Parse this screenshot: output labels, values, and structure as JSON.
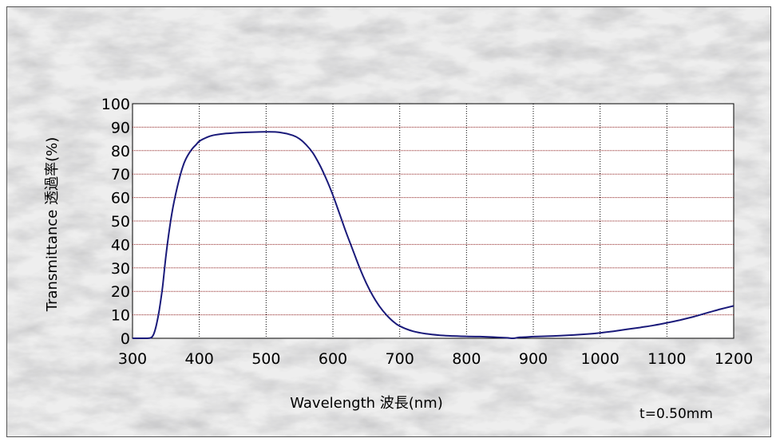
{
  "chart_data": {
    "type": "line",
    "title": "",
    "xlabel": "Wavelength 波長(nm)",
    "ylabel": "Transmittance 透過率(%)",
    "annotation": "t=0.50mm",
    "xlim": [
      300,
      1200
    ],
    "ylim": [
      0,
      100
    ],
    "x_ticks": [
      "300",
      "400",
      "500",
      "600",
      "700",
      "800",
      "900",
      "1000",
      "1100",
      "1200"
    ],
    "y_ticks": [
      "0",
      "10",
      "20",
      "30",
      "40",
      "50",
      "60",
      "70",
      "80",
      "90",
      "100"
    ],
    "grid": true,
    "legend": "none",
    "colors": {
      "line": "#1a1a7a",
      "vertical_grid": "#000000",
      "horizontal_grid": "#8b1a1a",
      "plot_background": "#ffffff"
    },
    "series": [
      {
        "x": [
          300,
          320,
          328,
          332,
          336,
          340,
          345,
          350,
          355,
          360,
          365,
          370,
          375,
          380,
          385,
          390,
          395,
          400,
          410,
          420,
          440,
          460,
          480,
          500,
          520,
          540,
          550,
          560,
          570,
          580,
          590,
          600,
          610,
          620,
          630,
          640,
          650,
          660,
          670,
          680,
          690,
          700,
          720,
          740,
          760,
          780,
          800,
          820,
          840,
          860,
          870,
          880,
          900,
          920,
          940,
          960,
          980,
          1000,
          1020,
          1040,
          1060,
          1080,
          1100,
          1120,
          1140,
          1160,
          1180,
          1200
        ],
        "values": [
          0,
          0,
          0.3,
          2,
          6,
          12,
          22,
          35,
          46,
          55,
          62,
          68,
          73,
          76.5,
          79,
          81,
          82.5,
          84,
          85.5,
          86.5,
          87.3,
          87.7,
          87.9,
          88,
          87.8,
          86.5,
          85,
          82.5,
          79,
          74,
          68,
          61,
          53,
          45,
          37.5,
          30,
          23.5,
          18,
          13.5,
          10,
          7.2,
          5.2,
          3,
          1.9,
          1.3,
          1,
          0.8,
          0.7,
          0.5,
          0.2,
          0,
          0.4,
          0.7,
          0.9,
          1.1,
          1.4,
          1.8,
          2.3,
          3,
          3.8,
          4.6,
          5.5,
          6.6,
          7.8,
          9.2,
          10.8,
          12.4,
          13.8
        ]
      }
    ]
  }
}
